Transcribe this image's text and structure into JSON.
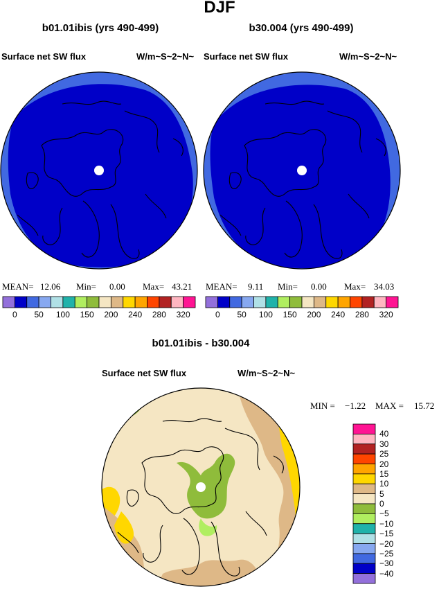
{
  "page_title": "DJF",
  "panels": [
    {
      "title": "b01.01ibis (yrs 490-499)",
      "variable": "Surface net SW flux",
      "units": "W/m~S~2~N~",
      "stats": {
        "mean_label": "MEAN=",
        "mean": "12.06",
        "min_label": "Min=",
        "min": "0.00",
        "max_label": "Max=",
        "max": "43.21"
      }
    },
    {
      "title": "b30.004 (yrs 490-499)",
      "variable": "Surface net SW flux",
      "units": "W/m~S~2~N~",
      "stats": {
        "mean_label": "MEAN=",
        "mean": "9.11",
        "min_label": "Min=",
        "min": "0.00",
        "max_label": "Max=",
        "max": "34.03"
      }
    }
  ],
  "colorbar_top": {
    "colors": [
      "#9370db",
      "#0000c8",
      "#4169e1",
      "#87a8f0",
      "#b0e0e6",
      "#20b2aa",
      "#b0ee60",
      "#8fbc3b",
      "#f5e6c3",
      "#deb887",
      "#ffd700",
      "#ffa500",
      "#ff4500",
      "#b22222",
      "#ffb6c1",
      "#ff1493"
    ],
    "labels": [
      "0",
      "50",
      "100",
      "150",
      "200",
      "240",
      "280",
      "320"
    ]
  },
  "difference_panel": {
    "title": "b01.01ibis - b30.004",
    "variable": "Surface net SW flux",
    "units": "W/m~S~2~N~",
    "min_label": "MIN =",
    "min": "−1.22",
    "max_label": "MAX =",
    "max": "15.72"
  },
  "colorbar_right": {
    "colors": [
      "#ff1493",
      "#ffb6c1",
      "#b22222",
      "#ff4500",
      "#ffa500",
      "#ffd700",
      "#deb887",
      "#f5e6c3",
      "#8fbc3b",
      "#b0ee60",
      "#20b2aa",
      "#b0e0e6",
      "#87a8f0",
      "#4169e1",
      "#0000c8",
      "#9370db"
    ],
    "labels": [
      "40",
      "30",
      "25",
      "20",
      "15",
      "10",
      "5",
      "0",
      "−5",
      "−10",
      "−15",
      "−20",
      "−25",
      "−30",
      "−40"
    ]
  }
}
